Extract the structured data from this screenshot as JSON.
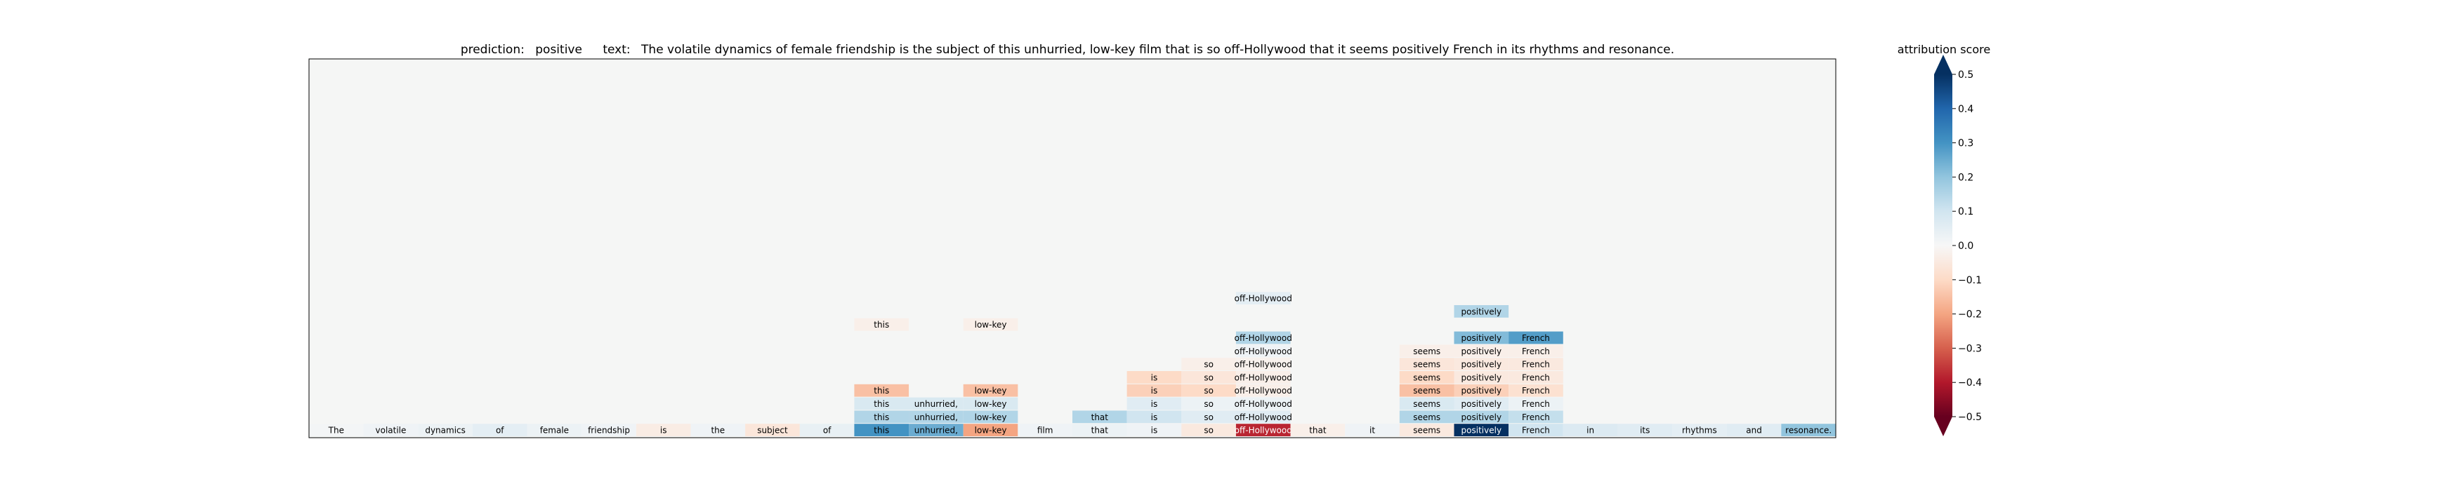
{
  "chart_data": {
    "type": "heatmap",
    "prediction_label": "prediction:",
    "prediction": "positive",
    "text_label": "text:",
    "text": "The volatile dynamics of female friendship is the subject of this unhurried, low-key film that is so off-Hollywood that it seems positively French in its rhythms and resonance.",
    "tokens": [
      "The",
      "volatile",
      "dynamics",
      "of",
      "female",
      "friendship",
      "is",
      "the",
      "subject",
      "of",
      "this",
      "unhurried,",
      "low-key",
      "film",
      "that",
      "is",
      "so",
      "off-Hollywood",
      "that",
      "it",
      "seems",
      "positively",
      "French",
      "in",
      "its",
      "rhythms",
      "and",
      "resonance."
    ],
    "bottom_row_scores": [
      0.01,
      0.02,
      0.03,
      0.05,
      0.03,
      0.02,
      -0.04,
      0.02,
      -0.06,
      0.04,
      0.3,
      0.25,
      -0.2,
      0.02,
      0.03,
      0.02,
      -0.05,
      -0.38,
      -0.03,
      0.02,
      -0.05,
      0.5,
      0.1,
      0.07,
      0.06,
      0.05,
      0.06,
      0.2
    ],
    "sub_rows": [
      {
        "level": 1,
        "cells": [
          {
            "token": 10,
            "score": 0.15
          },
          {
            "token": 11,
            "score": 0.15
          },
          {
            "token": 12,
            "score": 0.15
          },
          {
            "token": 14,
            "score": 0.15
          },
          {
            "token": 15,
            "score": 0.1
          },
          {
            "token": 16,
            "score": 0.06
          },
          {
            "token": 17,
            "score": 0.06
          },
          {
            "token": 20,
            "score": 0.15
          },
          {
            "token": 21,
            "score": 0.15
          },
          {
            "token": 22,
            "score": 0.12
          }
        ]
      },
      {
        "level": 2,
        "cells": [
          {
            "token": 10,
            "score": 0.08
          },
          {
            "token": 11,
            "score": 0.08
          },
          {
            "token": 12,
            "score": 0.08
          },
          {
            "token": 15,
            "score": 0.06
          },
          {
            "token": 16,
            "score": 0.03
          },
          {
            "token": 17,
            "score": 0.03
          },
          {
            "token": 20,
            "score": 0.08
          },
          {
            "token": 21,
            "score": 0.06
          },
          {
            "token": 22,
            "score": 0.03
          }
        ]
      },
      {
        "level": 3,
        "cells": [
          {
            "token": 10,
            "score": -0.15
          },
          {
            "token": 12,
            "score": -0.15
          },
          {
            "token": 15,
            "score": -0.12
          },
          {
            "token": 16,
            "score": -0.1
          },
          {
            "token": 17,
            "score": -0.03
          },
          {
            "token": 20,
            "score": -0.15
          },
          {
            "token": 21,
            "score": -0.12
          },
          {
            "token": 22,
            "score": -0.08
          }
        ]
      },
      {
        "level": 4,
        "cells": [
          {
            "token": 15,
            "score": -0.1
          },
          {
            "token": 16,
            "score": -0.06
          },
          {
            "token": 17,
            "score": -0.03
          },
          {
            "token": 20,
            "score": -0.1
          },
          {
            "token": 21,
            "score": -0.05
          },
          {
            "token": 22,
            "score": -0.05
          }
        ]
      },
      {
        "level": 5,
        "cells": [
          {
            "token": 16,
            "score": -0.03
          },
          {
            "token": 17,
            "score": -0.02
          },
          {
            "token": 20,
            "score": -0.06
          },
          {
            "token": 21,
            "score": -0.05
          },
          {
            "token": 22,
            "score": -0.05
          }
        ]
      },
      {
        "level": 6,
        "cells": [
          {
            "token": 17,
            "score": 0.02
          },
          {
            "token": 20,
            "score": -0.03
          },
          {
            "token": 21,
            "score": -0.03
          },
          {
            "token": 22,
            "score": -0.03
          }
        ]
      },
      {
        "level": 7,
        "cells": [
          {
            "token": 17,
            "score": 0.15
          },
          {
            "token": 21,
            "score": 0.22
          },
          {
            "token": 22,
            "score": 0.28
          }
        ]
      },
      {
        "level": 8,
        "cells": [
          {
            "token": 10,
            "score": -0.03
          },
          {
            "token": 12,
            "score": -0.03
          }
        ]
      },
      {
        "level": 9,
        "cells": [
          {
            "token": 21,
            "score": 0.15
          }
        ]
      },
      {
        "level": 10,
        "cells": [
          {
            "token": 17,
            "score": 0.05
          }
        ]
      }
    ],
    "colorbar": {
      "label": "attribution score",
      "min": -0.5,
      "max": 0.5,
      "ticks": [
        -0.5,
        -0.4,
        -0.3,
        -0.2,
        -0.1,
        0.0,
        0.1,
        0.2,
        0.3,
        0.4,
        0.5
      ],
      "tick_labels": [
        "−0.5",
        "−0.4",
        "−0.3",
        "−0.2",
        "−0.1",
        "0.0",
        "0.1",
        "0.2",
        "0.3",
        "0.4",
        "0.5"
      ],
      "colormap": "RdBu"
    },
    "background_color": "#f5f6f5"
  }
}
